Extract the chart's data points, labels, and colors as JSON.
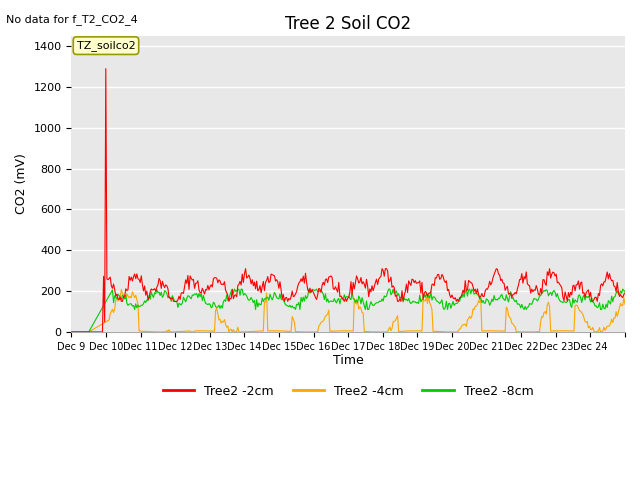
{
  "title": "Tree 2 Soil CO2",
  "subtitle": "No data for f_T2_CO2_4",
  "ylabel": "CO2 (mV)",
  "xlabel": "Time",
  "annotation_box": "TZ_soilco2",
  "ylim": [
    0,
    1450
  ],
  "yticks": [
    0,
    200,
    400,
    600,
    800,
    1000,
    1200,
    1400
  ],
  "xtick_positions": [
    8,
    9,
    10,
    11,
    12,
    13,
    14,
    15,
    16,
    17,
    18,
    19,
    20,
    21,
    22,
    23,
    24
  ],
  "xtick_labels": [
    "Dec 9",
    "Dec 10",
    "Dec 11",
    "Dec 12",
    "Dec 13",
    "Dec 14",
    "Dec 15",
    "Dec 16",
    "Dec 17",
    "Dec 18",
    "Dec 19",
    "Dec 20",
    "Dec 21",
    "Dec 22",
    "Dec 23",
    "Dec 24",
    ""
  ],
  "xlim": [
    8,
    24
  ],
  "colors": {
    "red": "#ff0000",
    "orange": "#ffa500",
    "green": "#00cc00",
    "bg": "#e8e8e8",
    "grid": "#ffffff"
  },
  "legend_labels": [
    "Tree2 -2cm",
    "Tree2 -4cm",
    "Tree2 -8cm"
  ],
  "legend_colors": [
    "#ff0000",
    "#ffa500",
    "#00cc00"
  ]
}
